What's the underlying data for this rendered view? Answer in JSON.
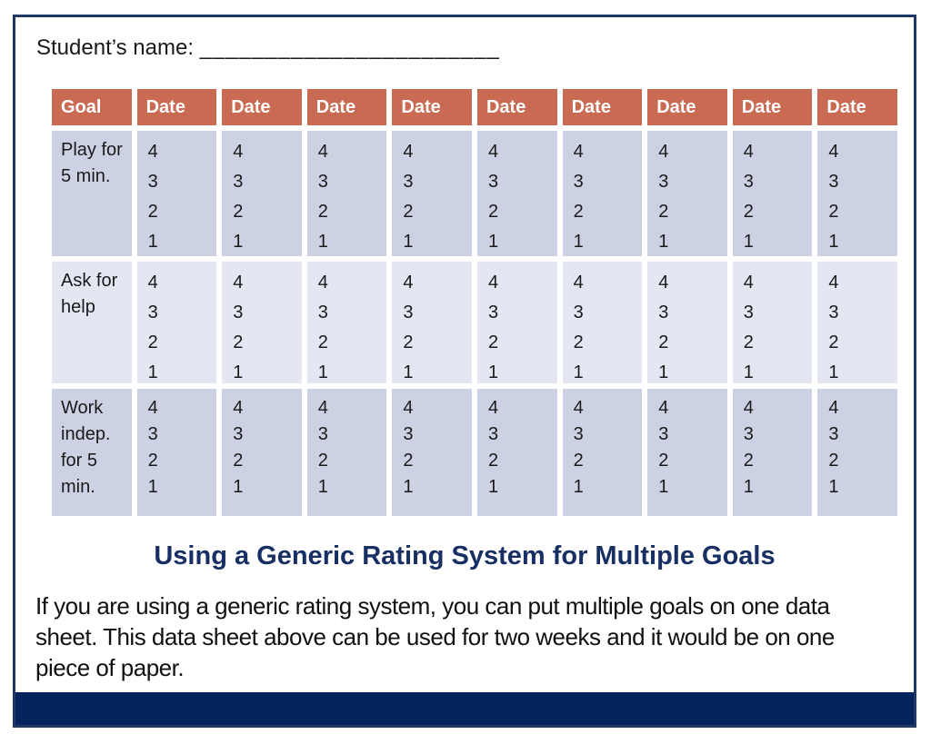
{
  "student_name": {
    "label": "Student’s name:",
    "blank": "_______________________"
  },
  "table": {
    "header": {
      "goal": "Goal",
      "dates": [
        "Date",
        "Date",
        "Date",
        "Date",
        "Date",
        "Date",
        "Date",
        "Date",
        "Date"
      ]
    },
    "rating_scale": [
      "4",
      "3",
      "2",
      "1"
    ],
    "rows": [
      {
        "goal_lines": [
          "Play for",
          "5 min."
        ]
      },
      {
        "goal_lines": [
          "Ask for",
          "help"
        ]
      },
      {
        "goal_lines": [
          "Work",
          "indep.",
          "for 5",
          "min."
        ]
      }
    ]
  },
  "caption": {
    "title": "Using a Generic Rating System for Multiple Goals",
    "body": "If you are using a generic rating system, you can put multiple goals on one data sheet. This data sheet above can be used for two weeks and it would be on one piece of paper."
  },
  "colors": {
    "header_bg": "#C96A52",
    "row_dark": "#CCD2E3",
    "row_light": "#E4E7F1",
    "accent_navy": "#182F63",
    "footer_bar": "#05235C",
    "border": "#203864"
  }
}
